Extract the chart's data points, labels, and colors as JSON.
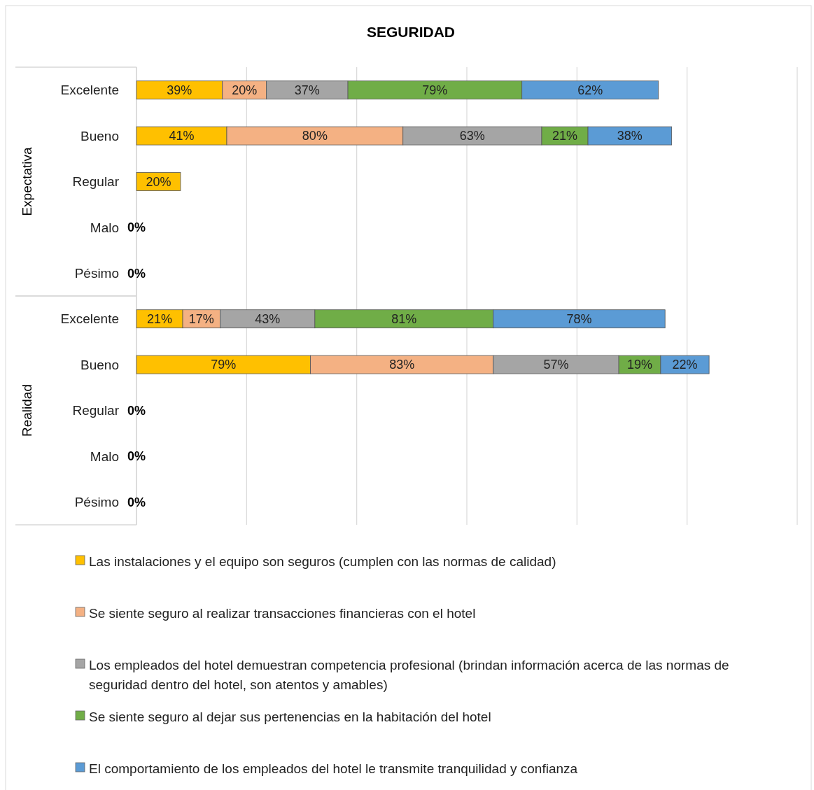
{
  "chart_data": {
    "type": "bar",
    "orientation": "horizontal",
    "stacked": true,
    "title": "SEGURIDAD",
    "categories": [
      "Excelente",
      "Bueno",
      "Regular",
      "Malo",
      "Pésimo",
      "Excelente",
      "Bueno",
      "Regular",
      "Malo",
      "Pésimo"
    ],
    "annotations": [
      "Expectativa",
      "Realidad"
    ],
    "xlim": [
      0,
      300
    ],
    "xticks": [
      {
        "value": 0,
        "label": null
      },
      {
        "value": 50,
        "label": null
      },
      {
        "value": 100,
        "label": null
      },
      {
        "value": 150,
        "label": null
      },
      {
        "value": 200,
        "label": null
      },
      {
        "value": 250,
        "label": null
      },
      {
        "value": 300,
        "label": null
      }
    ],
    "grid": "x",
    "tick_labels": "y",
    "legend": "bottom",
    "series": [
      {
        "name": "Las instalaciones y el equipo son seguros (cumplen con las normas de calidad)",
        "color": "#ffc000",
        "values": [
          39,
          41,
          20,
          0,
          0,
          21,
          79,
          0,
          0,
          0
        ],
        "value_labels": [
          "39%",
          "41%",
          "20%",
          "0%",
          "0%",
          "21%",
          "79%",
          "0%",
          "0%",
          "0%"
        ]
      },
      {
        "name": "Se siente seguro al realizar transacciones financieras con el hotel",
        "color": "#f4b183",
        "values": [
          20,
          80,
          0,
          0,
          0,
          17,
          83,
          0,
          0,
          0
        ],
        "value_labels": [
          "20%",
          "80%",
          null,
          null,
          null,
          "17%",
          "83%",
          null,
          null,
          null
        ]
      },
      {
        "name": "Los empleados del hotel demuestran competencia profesional (brindan información acerca de las normas de seguridad dentro del hotel, son atentos y amables)",
        "color": "#a5a5a5",
        "values": [
          37,
          63,
          0,
          0,
          0,
          43,
          57,
          0,
          0,
          0
        ],
        "value_labels": [
          "37%",
          "63%",
          null,
          null,
          null,
          "43%",
          "57%",
          null,
          null,
          null
        ]
      },
      {
        "name": "Se siente seguro al dejar sus pertenencias en la habitación del hotel",
        "color": "#70ad47",
        "values": [
          79,
          21,
          0,
          0,
          0,
          81,
          19,
          0,
          0,
          0
        ],
        "value_labels": [
          "79%",
          "21%",
          null,
          null,
          null,
          "81%",
          "19%",
          null,
          null,
          null
        ]
      },
      {
        "name": "El comportamiento de los empleados del hotel le transmite tranquilidad y confianza",
        "color": "#5b9bd5",
        "values": [
          62,
          38,
          0,
          0,
          0,
          78,
          22,
          0,
          0,
          0
        ],
        "value_labels": [
          "62%",
          "38%",
          null,
          null,
          null,
          "78%",
          "22%",
          null,
          null,
          null
        ]
      }
    ]
  }
}
